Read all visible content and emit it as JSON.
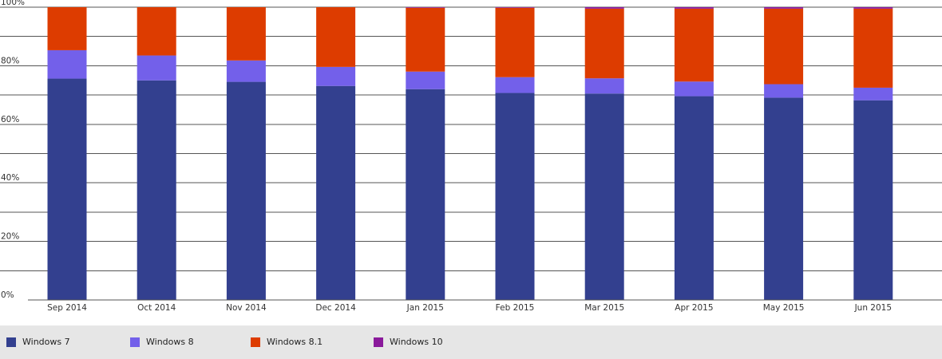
{
  "chart_data": {
    "type": "bar",
    "stacked": true,
    "categories": [
      "Sep 2014",
      "Oct 2014",
      "Nov 2014",
      "Dec 2014",
      "Jan 2015",
      "Feb 2015",
      "Mar 2015",
      "Apr 2015",
      "May 2015",
      "Jun 2015"
    ],
    "series": [
      {
        "name": "Windows 7",
        "color": "#33408f",
        "values": [
          75.6,
          75.0,
          74.5,
          73.1,
          72.0,
          70.7,
          70.5,
          69.6,
          69.1,
          68.2
        ]
      },
      {
        "name": "Windows 8",
        "color": "#7360ea",
        "values": [
          9.7,
          8.5,
          7.3,
          6.5,
          6.0,
          5.4,
          5.2,
          5.0,
          4.6,
          4.3
        ]
      },
      {
        "name": "Windows 8.1",
        "color": "#dd3c00",
        "values": [
          14.7,
          16.5,
          18.2,
          20.4,
          21.8,
          23.7,
          23.8,
          24.9,
          25.8,
          27.0
        ]
      },
      {
        "name": "Windows 10",
        "color": "#8a1a9b",
        "values": [
          0.0,
          0.0,
          0.0,
          0.0,
          0.2,
          0.2,
          0.5,
          0.5,
          0.5,
          0.5
        ]
      }
    ],
    "yticks": [
      "0%",
      "20%",
      "40%",
      "60%",
      "80%",
      "100%"
    ],
    "ylim": [
      0,
      100
    ],
    "grid": true,
    "legend_position": "bottom",
    "title": "",
    "xlabel": "",
    "ylabel": ""
  },
  "legend": {
    "items": [
      {
        "label": "Windows 7",
        "color": "#33408f"
      },
      {
        "label": "Windows 8",
        "color": "#7360ea"
      },
      {
        "label": "Windows 8.1",
        "color": "#dd3c00"
      },
      {
        "label": "Windows 10",
        "color": "#8a1a9b"
      }
    ]
  }
}
